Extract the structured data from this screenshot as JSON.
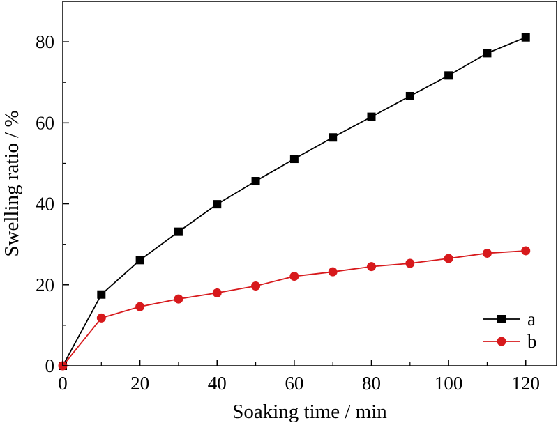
{
  "chart_data": {
    "type": "line",
    "title": "",
    "xlabel": "Soaking time / min",
    "ylabel": "Swelling ratio / %",
    "xlim": [
      0,
      128
    ],
    "ylim": [
      0,
      90
    ],
    "xticks": [
      0,
      20,
      40,
      60,
      80,
      100,
      120
    ],
    "yticks": [
      0,
      20,
      40,
      60,
      80
    ],
    "grid": false,
    "legend_position": "bottom-right",
    "x": [
      0,
      10,
      20,
      30,
      40,
      50,
      60,
      70,
      80,
      90,
      100,
      110,
      120
    ],
    "series": [
      {
        "name": "a",
        "color": "#000000",
        "marker": "square",
        "values": [
          0,
          17.6,
          26.1,
          33.1,
          39.9,
          45.6,
          51.1,
          56.4,
          61.5,
          66.6,
          71.7,
          77.2,
          81.1
        ]
      },
      {
        "name": "b",
        "color": "#d7191c",
        "marker": "circle",
        "values": [
          0,
          11.8,
          14.6,
          16.5,
          18.0,
          19.7,
          22.1,
          23.2,
          24.5,
          25.3,
          26.5,
          27.8,
          28.4
        ]
      }
    ]
  }
}
